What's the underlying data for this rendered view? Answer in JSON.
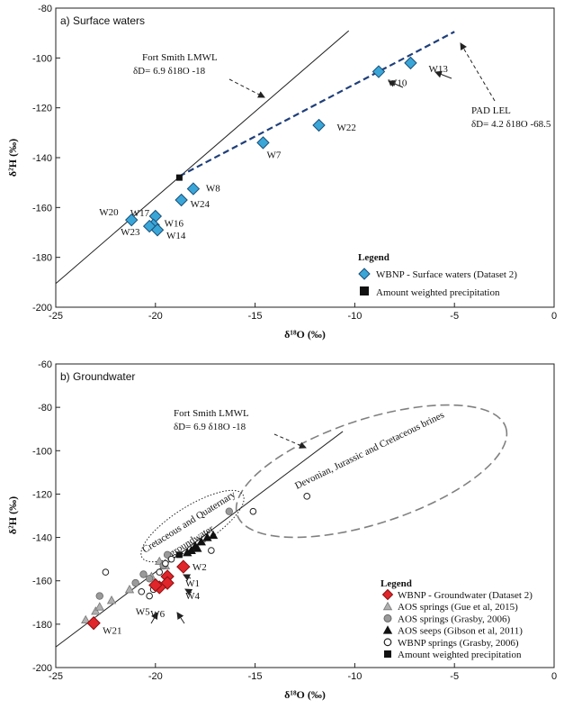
{
  "colors": {
    "surface_fill": "#3aa6d8",
    "surface_stroke": "#1a4e78",
    "lel_line": "#1f3f7a",
    "gw_fill": "#e0252b",
    "gw_stroke": "#8a1010",
    "gue_fill": "#b0b0b0",
    "grasby_fill": "#9a9a9a",
    "black": "#111111",
    "brine_ellipse": "#808080"
  },
  "chart_data": [
    {
      "type": "scatter",
      "panel": "a",
      "title": "a) Surface waters",
      "xlabel": "δ¹⁸O (‰)",
      "ylabel": "δ²H (‰)",
      "xlim": [
        -25,
        0
      ],
      "ylim": [
        -200,
        -80
      ],
      "xticks": [
        "-25",
        "-20",
        "-15",
        "-10",
        "-5",
        "0"
      ],
      "yticks": [
        "-80",
        "-100",
        "-120",
        "-140",
        "-160",
        "-180",
        "-200"
      ],
      "lmwl": {
        "label": "Fort Smith LMWL",
        "equation": "δD= 6.9 δ18O -18",
        "x": [
          -25,
          -10.3
        ]
      },
      "lel": {
        "label": "PAD LEL",
        "equation": "δD= 4.2 δ18O -68.5",
        "x": [
          -18.8,
          -5
        ]
      },
      "series": [
        {
          "name": "WBNP - Surface waters (Dataset 2)",
          "marker": "diamond",
          "points": [
            {
              "label": "W13",
              "x": -7.2,
              "y": -102
            },
            {
              "label": "W10",
              "x": -8.8,
              "y": -105.5
            },
            {
              "label": "W22",
              "x": -11.8,
              "y": -127
            },
            {
              "label": "W7",
              "x": -14.6,
              "y": -134
            },
            {
              "label": "W8",
              "x": -18.1,
              "y": -152.5
            },
            {
              "label": "W24",
              "x": -18.7,
              "y": -157
            },
            {
              "label": "W17",
              "x": -20.0,
              "y": -163.5
            },
            {
              "label": "W16",
              "x": -20.1,
              "y": -167
            },
            {
              "label": "W20",
              "x": -21.2,
              "y": -165
            },
            {
              "label": "W23",
              "x": -20.3,
              "y": -167.5
            },
            {
              "label": "W14",
              "x": -19.9,
              "y": -169
            }
          ]
        },
        {
          "name": "Amount weighted precipitation",
          "marker": "square",
          "points": [
            {
              "x": -18.8,
              "y": -148
            }
          ]
        }
      ],
      "legend": {
        "title": "Legend",
        "entries": [
          "WBNP - Surface waters (Dataset 2)",
          "Amount weighted precipitation"
        ]
      }
    },
    {
      "type": "scatter",
      "panel": "b",
      "title": "b) Groundwater",
      "xlabel": "δ¹⁸O (‰)",
      "ylabel": "δ²H (‰)",
      "xlim": [
        -25,
        0
      ],
      "ylim": [
        -200,
        -60
      ],
      "xticks": [
        "-25",
        "-20",
        "-15",
        "-10",
        "-5",
        "0"
      ],
      "yticks": [
        "-60",
        "-80",
        "-100",
        "-120",
        "-140",
        "-160",
        "-180",
        "-200"
      ],
      "lmwl": {
        "label": "Fort Smith LMWL",
        "equation": "δD= 6.9 δ18O -18",
        "x": [
          -25,
          -10.6
        ]
      },
      "annotations": {
        "brines": "Devonian, Jurassic and Cretaceous brines",
        "quaternary_line1": "Cretaceous and Quaternary",
        "quaternary_line2": "groundwater"
      },
      "series": [
        {
          "name": "WBNP - Groundwater (Dataset 2)",
          "marker": "diamond",
          "points": [
            {
              "label": "W2",
              "x": -18.6,
              "y": -153.5
            },
            {
              "label": "W1",
              "x": -19.4,
              "y": -158
            },
            {
              "label": "W4",
              "x": -19.4,
              "y": -161
            },
            {
              "label": "W6",
              "x": -19.8,
              "y": -163
            },
            {
              "label": "W5",
              "x": -20.0,
              "y": -162
            },
            {
              "label": "W21",
              "x": -23.1,
              "y": -179.5
            }
          ]
        },
        {
          "name": "AOS springs (Gue et al, 2015)",
          "marker": "triangle-grey",
          "points": [
            {
              "x": -23.5,
              "y": -178
            },
            {
              "x": -23.0,
              "y": -174
            },
            {
              "x": -22.8,
              "y": -172
            },
            {
              "x": -22.2,
              "y": -169
            },
            {
              "x": -21.3,
              "y": -164
            },
            {
              "x": -20.2,
              "y": -158
            },
            {
              "x": -19.5,
              "y": -153
            },
            {
              "x": -19.8,
              "y": -151
            }
          ]
        },
        {
          "name": "AOS springs (Grasby, 2006)",
          "marker": "circle-grey",
          "points": [
            {
              "x": -22.8,
              "y": -167
            },
            {
              "x": -21.0,
              "y": -161
            },
            {
              "x": -20.6,
              "y": -157
            },
            {
              "x": -20.3,
              "y": -159
            },
            {
              "x": -19.6,
              "y": -153
            },
            {
              "x": -19.4,
              "y": -148
            },
            {
              "x": -16.3,
              "y": -128
            }
          ]
        },
        {
          "name": "AOS seeps (Gibson et al, 2011)",
          "marker": "triangle-black",
          "points": [
            {
              "x": -18.2,
              "y": -146
            },
            {
              "x": -18.0,
              "y": -144
            },
            {
              "x": -17.7,
              "y": -142
            },
            {
              "x": -17.4,
              "y": -140
            },
            {
              "x": -17.1,
              "y": -139
            },
            {
              "x": -18.4,
              "y": -147
            },
            {
              "x": -17.9,
              "y": -145
            }
          ]
        },
        {
          "name": "WBNP springs (Grasby, 2006)",
          "marker": "circle-open",
          "points": [
            {
              "x": -22.5,
              "y": -156
            },
            {
              "x": -20.7,
              "y": -165
            },
            {
              "x": -20.3,
              "y": -167
            },
            {
              "x": -20.1,
              "y": -164
            },
            {
              "x": -19.8,
              "y": -156
            },
            {
              "x": -19.5,
              "y": -152
            },
            {
              "x": -19.2,
              "y": -150
            },
            {
              "x": -17.2,
              "y": -146
            },
            {
              "x": -15.1,
              "y": -128
            },
            {
              "x": -12.4,
              "y": -121
            }
          ]
        },
        {
          "name": "Amount weighted precipitation",
          "marker": "square",
          "points": [
            {
              "x": -18.8,
              "y": -148
            }
          ]
        }
      ],
      "legend": {
        "title": "Legend",
        "entries": [
          "WBNP - Groundwater (Dataset 2)",
          "AOS springs (Gue et al, 2015)",
          "AOS springs (Grasby, 2006)",
          "AOS seeps (Gibson et al, 2011)",
          "WBNP springs (Grasby, 2006)",
          "Amount weighted precipitation"
        ]
      }
    }
  ]
}
